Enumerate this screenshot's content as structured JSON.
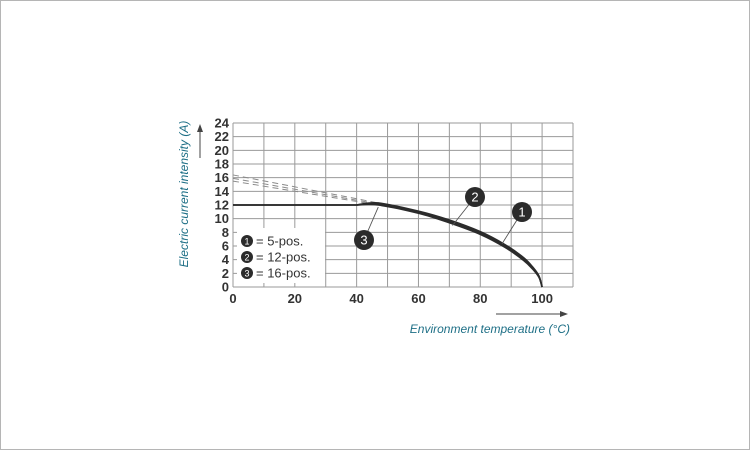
{
  "chart_data": {
    "type": "line",
    "xlabel": "Environment temperature  (°C)",
    "ylabel": "Electric current intensity (A)",
    "xlim": [
      0,
      110
    ],
    "ylim": [
      0,
      24
    ],
    "x_ticks": [
      0,
      20,
      40,
      60,
      80,
      100
    ],
    "y_ticks": [
      0,
      2,
      4,
      6,
      8,
      10,
      12,
      14,
      16,
      18,
      20,
      22,
      24
    ],
    "grid": true,
    "legend": {
      "placement": "bottom-left",
      "items": [
        {
          "badge": "1",
          "label": "= 5-pos."
        },
        {
          "badge": "2",
          "label": "= 12-pos."
        },
        {
          "badge": "3",
          "label": "= 16-pos."
        }
      ]
    },
    "dashed_extensions": [
      {
        "x": [
          0,
          47
        ],
        "y": [
          16.4,
          12.3
        ]
      },
      {
        "x": [
          0,
          47
        ],
        "y": [
          15.9,
          12.15
        ]
      },
      {
        "x": [
          0,
          47
        ],
        "y": [
          15.5,
          12.0
        ]
      }
    ],
    "series": [
      {
        "name": "1",
        "x": [
          0,
          40,
          47,
          60,
          70,
          80,
          88,
          94,
          97,
          99,
          100
        ],
        "y": [
          12,
          12,
          12.3,
          11.1,
          9.8,
          8.1,
          6.2,
          4.3,
          2.9,
          1.6,
          0
        ]
      },
      {
        "name": "2",
        "x": [
          0,
          40,
          47,
          60,
          70,
          80,
          88,
          94,
          97,
          99,
          100
        ],
        "y": [
          12,
          12,
          12.15,
          10.95,
          9.6,
          7.9,
          6.0,
          4.1,
          2.75,
          1.5,
          0
        ]
      },
      {
        "name": "3",
        "x": [
          0,
          40,
          47,
          60,
          70,
          80,
          88,
          94,
          97,
          99,
          100
        ],
        "y": [
          12,
          12,
          12.0,
          10.8,
          9.4,
          7.7,
          5.8,
          3.9,
          2.6,
          1.4,
          0
        ]
      }
    ],
    "callouts": [
      {
        "badge": "1",
        "target": {
          "x": 87,
          "y": 6.3
        }
      },
      {
        "badge": "2",
        "target": {
          "x": 71,
          "y": 9.0
        }
      },
      {
        "badge": "3",
        "target": {
          "x": 47,
          "y": 11.7
        }
      }
    ],
    "colors": {
      "grid": "#9a9a9a",
      "axis_title": "#1e6f86",
      "curve": "#2b2b2b",
      "dashed": "#8a8a8a",
      "badge": "#2b2b2b"
    }
  }
}
